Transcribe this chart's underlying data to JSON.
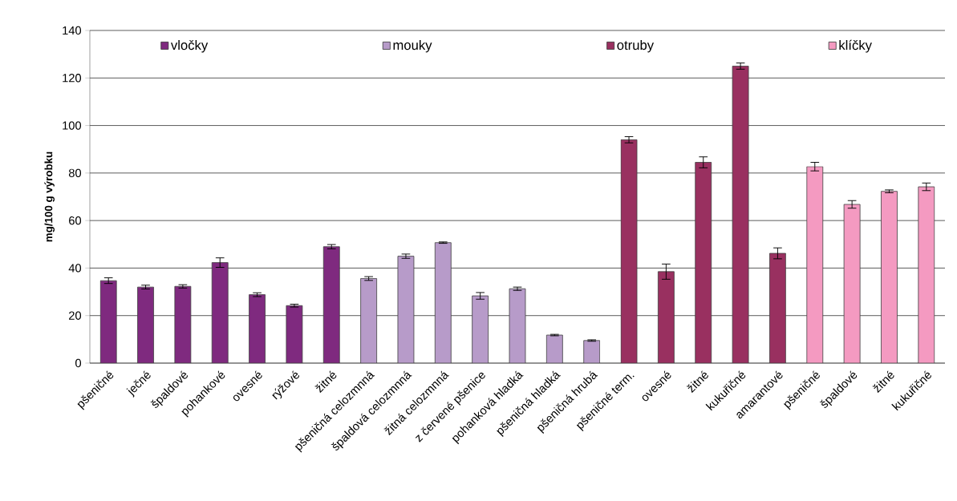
{
  "chart_data": {
    "type": "bar",
    "ylabel": "mg/100 g  výrobku",
    "categories": [
      "pšeničné",
      "ječné",
      "špaldové",
      "pohankové",
      "ovesné",
      "rýžové",
      "žitné",
      "pšeničná celozmnná",
      "špaldová celozmnná",
      "žitná celozmnná",
      "z červené pšenice",
      "pohanková hladká",
      "pšeničná hladká",
      "pšeničná hrubá",
      "pšeničné term.",
      "ovesné",
      "žitné",
      "kukuřičné",
      "amarantové",
      "pšeničné",
      "špaldové",
      "žitné",
      "kukuřičné"
    ],
    "series": [
      {
        "name": "vločky",
        "color": "#7f2a7f",
        "values": [
          34.7,
          32.0,
          32.3,
          42.3,
          28.8,
          24.2,
          49.0,
          null,
          null,
          null,
          null,
          null,
          null,
          null,
          null,
          null,
          null,
          null,
          null,
          null,
          null,
          null,
          null
        ],
        "errors": [
          1.2,
          0.8,
          0.7,
          2.0,
          0.8,
          0.6,
          0.9,
          null,
          null,
          null,
          null,
          null,
          null,
          null,
          null,
          null,
          null,
          null,
          null,
          null,
          null,
          null,
          null
        ]
      },
      {
        "name": "mouky",
        "color": "#b79bc9",
        "values": [
          null,
          null,
          null,
          null,
          null,
          null,
          null,
          35.6,
          45.0,
          50.7,
          28.3,
          31.3,
          11.8,
          9.5,
          null,
          null,
          null,
          null,
          null,
          null,
          null,
          null,
          null
        ],
        "errors": [
          null,
          null,
          null,
          null,
          null,
          null,
          null,
          0.8,
          0.9,
          0.3,
          1.4,
          0.7,
          0.3,
          0.3,
          null,
          null,
          null,
          null,
          null,
          null,
          null,
          null,
          null
        ]
      },
      {
        "name": "otruby",
        "color": "#993060",
        "values": [
          null,
          null,
          null,
          null,
          null,
          null,
          null,
          null,
          null,
          null,
          null,
          null,
          null,
          null,
          94.0,
          38.5,
          84.5,
          125.0,
          46.2,
          null,
          null,
          null,
          null
        ],
        "errors": [
          null,
          null,
          null,
          null,
          null,
          null,
          null,
          null,
          null,
          null,
          null,
          null,
          null,
          null,
          1.3,
          3.2,
          2.3,
          1.3,
          2.3,
          null,
          null,
          null,
          null
        ]
      },
      {
        "name": "klíčky",
        "color": "#f49ac1",
        "values": [
          null,
          null,
          null,
          null,
          null,
          null,
          null,
          null,
          null,
          null,
          null,
          null,
          null,
          null,
          null,
          null,
          null,
          null,
          null,
          82.7,
          66.8,
          72.3,
          74.2
        ],
        "errors": [
          null,
          null,
          null,
          null,
          null,
          null,
          null,
          null,
          null,
          null,
          null,
          null,
          null,
          null,
          null,
          null,
          null,
          null,
          null,
          1.8,
          1.6,
          0.6,
          1.6
        ]
      }
    ],
    "ylim": [
      0,
      140
    ],
    "yticks": [
      0,
      20,
      40,
      60,
      80,
      100,
      120,
      140
    ],
    "grid": "y",
    "legend": "top"
  }
}
